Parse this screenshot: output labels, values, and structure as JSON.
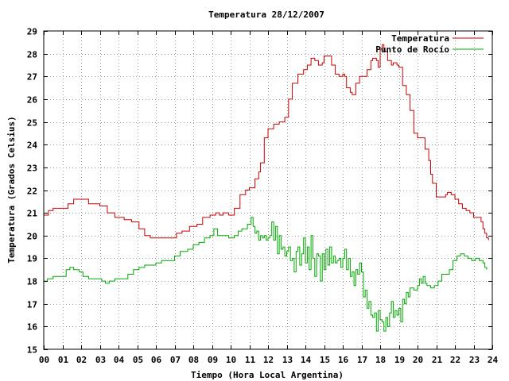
{
  "chart_data": {
    "type": "line",
    "title": "Temperatura 28/12/2007",
    "xlabel": "Tiempo (Hora Local Argentina)",
    "ylabel": "Temperatura (Grados Celsius)",
    "xlim": [
      0,
      24
    ],
    "ylim": [
      15,
      29
    ],
    "grid": true,
    "legend_position": "top-right",
    "x_tick_labels": [
      "00",
      "01",
      "02",
      "03",
      "04",
      "05",
      "06",
      "07",
      "08",
      "09",
      "10",
      "11",
      "12",
      "13",
      "14",
      "15",
      "16",
      "17",
      "18",
      "19",
      "20",
      "21",
      "22",
      "23",
      "24"
    ],
    "y_ticks": [
      15,
      16,
      17,
      18,
      19,
      20,
      21,
      22,
      23,
      24,
      25,
      26,
      27,
      28,
      29
    ],
    "series": [
      {
        "name": "Temperatura",
        "color": "#cc0000",
        "points": [
          [
            0,
            20.9
          ],
          [
            0.25,
            21.1
          ],
          [
            0.5,
            21.2
          ],
          [
            1.0,
            21.2
          ],
          [
            1.3,
            21.4
          ],
          [
            1.6,
            21.6
          ],
          [
            2.1,
            21.6
          ],
          [
            2.4,
            21.4
          ],
          [
            3.0,
            21.3
          ],
          [
            3.4,
            21.0
          ],
          [
            3.8,
            20.8
          ],
          [
            4.3,
            20.7
          ],
          [
            4.7,
            20.6
          ],
          [
            5.1,
            20.3
          ],
          [
            5.4,
            20.0
          ],
          [
            5.7,
            19.9
          ],
          [
            6.1,
            19.9
          ],
          [
            6.4,
            19.9
          ],
          [
            6.8,
            19.9
          ],
          [
            7.1,
            20.1
          ],
          [
            7.4,
            20.2
          ],
          [
            7.8,
            20.4
          ],
          [
            8.2,
            20.5
          ],
          [
            8.5,
            20.8
          ],
          [
            8.9,
            20.9
          ],
          [
            9.2,
            21.0
          ],
          [
            9.4,
            20.9
          ],
          [
            9.6,
            21.0
          ],
          [
            9.9,
            20.9
          ],
          [
            10.2,
            21.2
          ],
          [
            10.5,
            21.8
          ],
          [
            10.8,
            22.0
          ],
          [
            11.0,
            22.1
          ],
          [
            11.3,
            22.5
          ],
          [
            11.5,
            22.8
          ],
          [
            11.6,
            23.2
          ],
          [
            11.8,
            24.3
          ],
          [
            12.0,
            24.7
          ],
          [
            12.3,
            24.9
          ],
          [
            12.6,
            25.0
          ],
          [
            12.9,
            25.2
          ],
          [
            13.1,
            26.0
          ],
          [
            13.3,
            26.7
          ],
          [
            13.6,
            27.1
          ],
          [
            13.9,
            27.3
          ],
          [
            14.1,
            27.5
          ],
          [
            14.3,
            27.8
          ],
          [
            14.5,
            27.7
          ],
          [
            14.7,
            27.5
          ],
          [
            14.9,
            27.6
          ],
          [
            15.0,
            27.9
          ],
          [
            15.2,
            27.9
          ],
          [
            15.4,
            27.5
          ],
          [
            15.6,
            27.1
          ],
          [
            15.8,
            27.0
          ],
          [
            16.0,
            27.1
          ],
          [
            16.1,
            27.0
          ],
          [
            16.2,
            26.5
          ],
          [
            16.4,
            26.3
          ],
          [
            16.5,
            26.2
          ],
          [
            16.7,
            26.7
          ],
          [
            16.9,
            27.0
          ],
          [
            17.1,
            27.0
          ],
          [
            17.3,
            27.3
          ],
          [
            17.5,
            27.7
          ],
          [
            17.6,
            27.8
          ],
          [
            17.8,
            27.7
          ],
          [
            17.9,
            27.4
          ],
          [
            18.0,
            28.2
          ],
          [
            18.1,
            28.4
          ],
          [
            18.2,
            28.1
          ],
          [
            18.4,
            27.7
          ],
          [
            18.6,
            27.5
          ],
          [
            18.7,
            27.6
          ],
          [
            18.9,
            27.5
          ],
          [
            19.0,
            27.4
          ],
          [
            19.2,
            26.6
          ],
          [
            19.4,
            26.2
          ],
          [
            19.6,
            25.5
          ],
          [
            19.8,
            24.5
          ],
          [
            20.0,
            24.3
          ],
          [
            20.2,
            24.3
          ],
          [
            20.4,
            23.8
          ],
          [
            20.6,
            23.3
          ],
          [
            20.7,
            22.7
          ],
          [
            20.8,
            22.3
          ],
          [
            21.0,
            21.7
          ],
          [
            21.3,
            21.7
          ],
          [
            21.5,
            21.8
          ],
          [
            21.6,
            21.9
          ],
          [
            21.8,
            21.8
          ],
          [
            22.0,
            21.6
          ],
          [
            22.2,
            21.4
          ],
          [
            22.4,
            21.2
          ],
          [
            22.6,
            21.1
          ],
          [
            22.8,
            21.0
          ],
          [
            23.0,
            20.8
          ],
          [
            23.2,
            20.8
          ],
          [
            23.4,
            20.6
          ],
          [
            23.5,
            20.3
          ],
          [
            23.6,
            20.1
          ],
          [
            23.7,
            19.9
          ],
          [
            23.8,
            19.8
          ]
        ]
      },
      {
        "name": "Punto de Rocío",
        "color": "#00aa00",
        "points": [
          [
            0,
            18.0
          ],
          [
            0.2,
            18.1
          ],
          [
            0.5,
            18.2
          ],
          [
            1.0,
            18.2
          ],
          [
            1.2,
            18.5
          ],
          [
            1.4,
            18.6
          ],
          [
            1.6,
            18.5
          ],
          [
            1.9,
            18.4
          ],
          [
            2.1,
            18.2
          ],
          [
            2.4,
            18.1
          ],
          [
            2.8,
            18.1
          ],
          [
            3.1,
            18.0
          ],
          [
            3.3,
            17.9
          ],
          [
            3.5,
            18.0
          ],
          [
            3.8,
            18.1
          ],
          [
            4.2,
            18.1
          ],
          [
            4.5,
            18.3
          ],
          [
            4.8,
            18.5
          ],
          [
            5.1,
            18.6
          ],
          [
            5.4,
            18.7
          ],
          [
            5.7,
            18.7
          ],
          [
            6.0,
            18.8
          ],
          [
            6.3,
            18.9
          ],
          [
            6.7,
            18.9
          ],
          [
            7.0,
            19.1
          ],
          [
            7.3,
            19.3
          ],
          [
            7.7,
            19.4
          ],
          [
            8.0,
            19.6
          ],
          [
            8.3,
            19.7
          ],
          [
            8.6,
            19.9
          ],
          [
            8.9,
            20.0
          ],
          [
            9.1,
            20.3
          ],
          [
            9.3,
            20.0
          ],
          [
            9.6,
            20.0
          ],
          [
            9.9,
            19.9
          ],
          [
            10.2,
            20.0
          ],
          [
            10.4,
            20.2
          ],
          [
            10.6,
            20.3
          ],
          [
            10.9,
            20.5
          ],
          [
            11.1,
            20.8
          ],
          [
            11.2,
            20.4
          ],
          [
            11.3,
            20.1
          ],
          [
            11.4,
            20.2
          ],
          [
            11.5,
            19.8
          ],
          [
            11.6,
            20.0
          ],
          [
            11.7,
            19.9
          ],
          [
            11.8,
            20.0
          ],
          [
            11.9,
            19.8
          ],
          [
            12.0,
            19.9
          ],
          [
            12.1,
            20.0
          ],
          [
            12.2,
            20.6
          ],
          [
            12.3,
            19.8
          ],
          [
            12.4,
            20.4
          ],
          [
            12.5,
            19.2
          ],
          [
            12.6,
            20.0
          ],
          [
            12.7,
            19.4
          ],
          [
            12.8,
            19.5
          ],
          [
            12.9,
            19.1
          ],
          [
            13.0,
            19.3
          ],
          [
            13.1,
            19.5
          ],
          [
            13.2,
            18.9
          ],
          [
            13.3,
            19.0
          ],
          [
            13.4,
            18.4
          ],
          [
            13.5,
            19.3
          ],
          [
            13.6,
            19.5
          ],
          [
            13.7,
            18.7
          ],
          [
            13.8,
            19.2
          ],
          [
            13.9,
            19.9
          ],
          [
            14.0,
            18.8
          ],
          [
            14.1,
            19.5
          ],
          [
            14.2,
            18.5
          ],
          [
            14.3,
            20.0
          ],
          [
            14.4,
            19.0
          ],
          [
            14.5,
            18.2
          ],
          [
            14.6,
            19.2
          ],
          [
            14.7,
            19.1
          ],
          [
            14.8,
            18.0
          ],
          [
            14.9,
            19.2
          ],
          [
            15.0,
            18.5
          ],
          [
            15.1,
            19.4
          ],
          [
            15.2,
            18.7
          ],
          [
            15.3,
            19.5
          ],
          [
            15.4,
            18.8
          ],
          [
            15.5,
            19.1
          ],
          [
            15.6,
            18.8
          ],
          [
            15.7,
            18.9
          ],
          [
            15.8,
            19.0
          ],
          [
            15.9,
            18.6
          ],
          [
            16.0,
            19.0
          ],
          [
            16.1,
            19.4
          ],
          [
            16.2,
            18.5
          ],
          [
            16.3,
            19.0
          ],
          [
            16.4,
            18.2
          ],
          [
            16.5,
            18.4
          ],
          [
            16.6,
            17.8
          ],
          [
            16.7,
            18.5
          ],
          [
            16.8,
            18.3
          ],
          [
            16.9,
            18.8
          ],
          [
            17.0,
            18.4
          ],
          [
            17.1,
            17.3
          ],
          [
            17.2,
            17.6
          ],
          [
            17.3,
            16.8
          ],
          [
            17.4,
            17.1
          ],
          [
            17.5,
            16.5
          ],
          [
            17.6,
            16.4
          ],
          [
            17.7,
            16.6
          ],
          [
            17.8,
            15.8
          ],
          [
            17.9,
            16.7
          ],
          [
            18.0,
            16.3
          ],
          [
            18.1,
            16.2
          ],
          [
            18.2,
            15.8
          ],
          [
            18.3,
            16.4
          ],
          [
            18.4,
            16.0
          ],
          [
            18.5,
            16.6
          ],
          [
            18.6,
            17.1
          ],
          [
            18.7,
            16.4
          ],
          [
            18.8,
            16.7
          ],
          [
            18.9,
            16.5
          ],
          [
            19.0,
            16.8
          ],
          [
            19.1,
            16.2
          ],
          [
            19.2,
            17.2
          ],
          [
            19.3,
            17.0
          ],
          [
            19.4,
            17.5
          ],
          [
            19.5,
            17.3
          ],
          [
            19.6,
            17.7
          ],
          [
            19.8,
            17.6
          ],
          [
            20.0,
            17.8
          ],
          [
            20.1,
            18.1
          ],
          [
            20.2,
            17.9
          ],
          [
            20.3,
            18.2
          ],
          [
            20.4,
            17.9
          ],
          [
            20.5,
            17.8
          ],
          [
            20.7,
            17.7
          ],
          [
            20.9,
            17.8
          ],
          [
            21.1,
            18.0
          ],
          [
            21.3,
            18.3
          ],
          [
            21.5,
            18.3
          ],
          [
            21.7,
            18.5
          ],
          [
            21.9,
            18.9
          ],
          [
            22.1,
            19.1
          ],
          [
            22.3,
            19.2
          ],
          [
            22.5,
            19.1
          ],
          [
            22.7,
            19.0
          ],
          [
            22.9,
            18.9
          ],
          [
            23.1,
            19.0
          ],
          [
            23.3,
            18.9
          ],
          [
            23.5,
            18.8
          ],
          [
            23.6,
            18.6
          ],
          [
            23.7,
            18.5
          ]
        ]
      }
    ]
  }
}
